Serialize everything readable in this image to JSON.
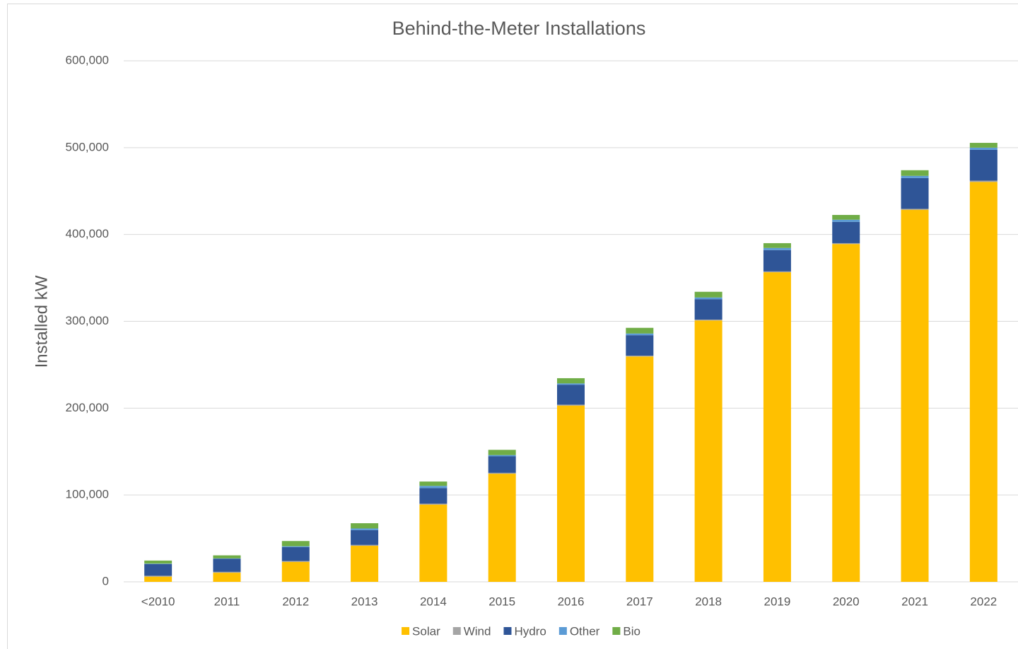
{
  "chart_data": {
    "type": "stacked_bar",
    "title": "Behind-the-Meter Installations",
    "y_label": "Installed kW",
    "categories": [
      "<2010",
      "2011",
      "2012",
      "2013",
      "2014",
      "2015",
      "2016",
      "2017",
      "2018",
      "2019",
      "2020",
      "2021",
      "2022"
    ],
    "series": [
      {
        "name": "Solar",
        "color": "#ffc000",
        "values": [
          6000,
          10500,
          23000,
          41500,
          89000,
          124500,
          203000,
          259500,
          301000,
          356500,
          389000,
          428500,
          460500
        ]
      },
      {
        "name": "Wind",
        "color": "#a5a5a5",
        "values": [
          1000,
          1000,
          1000,
          1000,
          1000,
          1000,
          1000,
          1000,
          1000,
          1000,
          1000,
          1000,
          1500
        ]
      },
      {
        "name": "Hydro",
        "color": "#2f5597",
        "values": [
          13500,
          15000,
          16000,
          17000,
          18000,
          19000,
          23000,
          23500,
          23500,
          24500,
          24500,
          35500,
          35500
        ]
      },
      {
        "name": "Other",
        "color": "#5b9bd5",
        "values": [
          500,
          500,
          1000,
          2000,
          2500,
          1500,
          1500,
          2000,
          2000,
          2500,
          2500,
          2500,
          2500
        ]
      },
      {
        "name": "Bio",
        "color": "#70ad47",
        "values": [
          3500,
          3500,
          6000,
          6000,
          5000,
          6000,
          6000,
          6500,
          6500,
          5500,
          5500,
          6500,
          5500
        ]
      }
    ],
    "ylim": [
      0,
      600000
    ],
    "yticks": [
      0,
      {
        "value": 100000,
        "label": "100,000"
      },
      {
        "value": 200000,
        "label": "200,000"
      },
      {
        "value": 300000,
        "label": "300,000"
      },
      {
        "value": 400000,
        "label": "400,000"
      },
      {
        "value": 500000,
        "label": "500,000"
      },
      {
        "value": 600000,
        "label": "600,000"
      }
    ],
    "grid": true,
    "legend": "bottom"
  }
}
